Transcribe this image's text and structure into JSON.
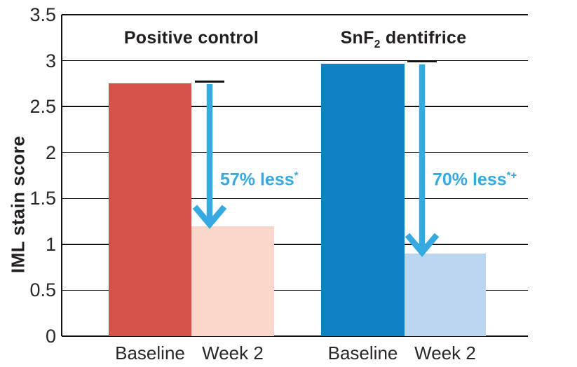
{
  "chart_data": {
    "type": "bar",
    "title": "",
    "ylabel": "IML stain score",
    "xlabel": "",
    "ylim": [
      0,
      3.5
    ],
    "yticks": [
      0,
      0.5,
      1,
      1.5,
      2,
      2.5,
      3,
      3.5
    ],
    "grid": true,
    "legend": "none",
    "categories": [
      "Baseline",
      "Week 2"
    ],
    "groups": [
      {
        "label": "Positive control",
        "label_parts": [
          {
            "text": "Positive control"
          }
        ],
        "series": [
          {
            "category": "Baseline",
            "value": 2.75,
            "color": "#d5524a"
          },
          {
            "category": "Week 2",
            "value": 1.2,
            "color": "#fad7ca"
          }
        ],
        "annotation": {
          "text": "57% less",
          "superscript": "*",
          "from_value": 2.75,
          "to_value": 1.2,
          "label_value": 1.75
        }
      },
      {
        "label": "SnF2 dentifrice",
        "label_parts": [
          {
            "text": "SnF"
          },
          {
            "text": "2",
            "sub": true
          },
          {
            "text": " dentifrice"
          }
        ],
        "series": [
          {
            "category": "Baseline",
            "value": 2.97,
            "color": "#0f82c6"
          },
          {
            "category": "Week 2",
            "value": 0.9,
            "color": "#bcd6ef"
          }
        ],
        "annotation": {
          "text": "70% less",
          "superscript": "*+",
          "from_value": 2.97,
          "to_value": 0.9,
          "label_value": 1.75
        }
      }
    ],
    "colors": {
      "grid": "#121212",
      "axis": "#121212",
      "text": "#231f20",
      "tick_text": "#2b2728",
      "arrow": "#36a9e1"
    }
  }
}
